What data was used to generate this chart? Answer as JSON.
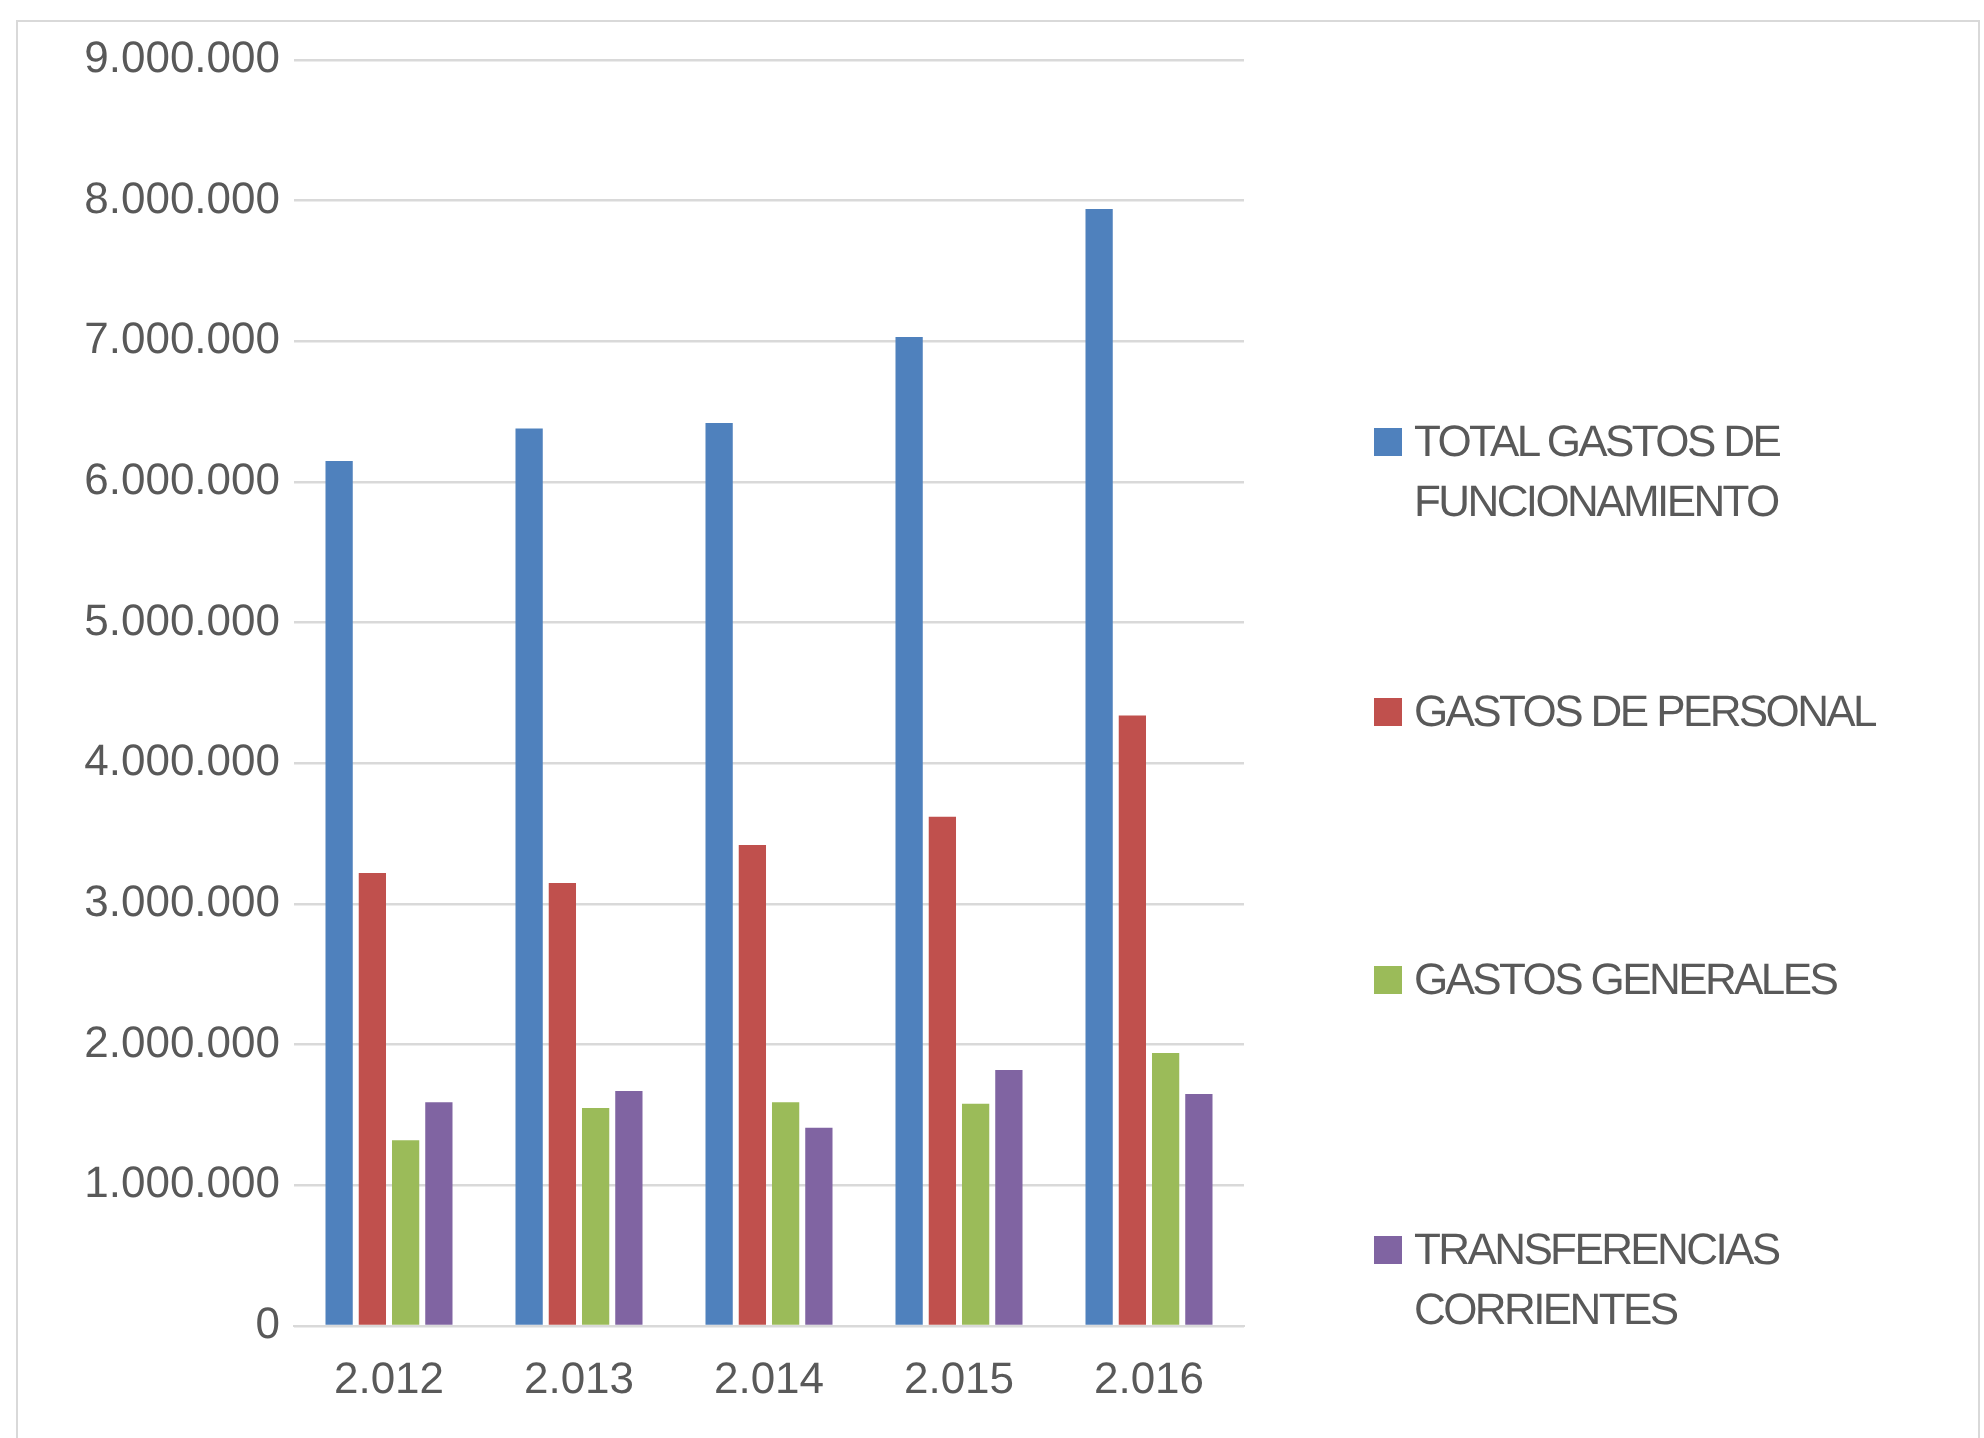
{
  "chart_data": {
    "type": "bar",
    "categories": [
      "2.012",
      "2.013",
      "2.014",
      "2.015",
      "2.016"
    ],
    "series": [
      {
        "name": "TOTAL GASTOS DE FUNCIONAMIENTO",
        "color": "#4f81bd",
        "values": [
          6150000,
          6380000,
          6420000,
          7030000,
          7940000
        ]
      },
      {
        "name": "GASTOS DE PERSONAL",
        "color": "#c0504d",
        "values": [
          3220000,
          3150000,
          3420000,
          3620000,
          4340000
        ]
      },
      {
        "name": "GASTOS GENERALES",
        "color": "#9bbb59",
        "values": [
          1320000,
          1550000,
          1590000,
          1580000,
          1940000
        ]
      },
      {
        "name": "TRANSFERENCIAS CORRIENTES",
        "color": "#8064a2",
        "values": [
          1590000,
          1670000,
          1410000,
          1820000,
          1650000
        ]
      }
    ],
    "ylim": [
      0,
      9000000
    ],
    "yticks": [
      {
        "value": 0,
        "label": "0"
      },
      {
        "value": 1000000,
        "label": "1.000.000"
      },
      {
        "value": 2000000,
        "label": "2.000.000"
      },
      {
        "value": 3000000,
        "label": "3.000.000"
      },
      {
        "value": 4000000,
        "label": "4.000.000"
      },
      {
        "value": 5000000,
        "label": "5.000.000"
      },
      {
        "value": 6000000,
        "label": "6.000.000"
      },
      {
        "value": 7000000,
        "label": "7.000.000"
      },
      {
        "value": 8000000,
        "label": "8.000.000"
      },
      {
        "value": 9000000,
        "label": "9.000.000"
      }
    ],
    "grid": "y",
    "legend": "right"
  }
}
